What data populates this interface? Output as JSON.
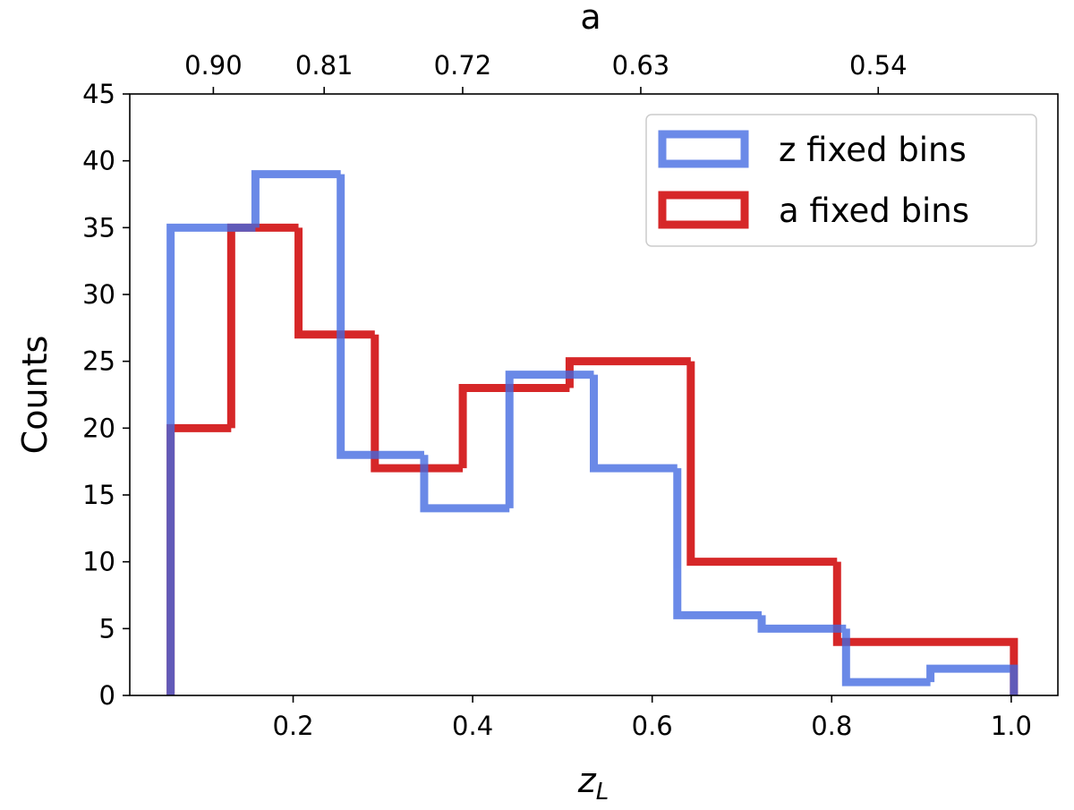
{
  "chart_data": {
    "type": "histogram",
    "xlabel": {
      "base": "z",
      "subscript": "L"
    },
    "ylabel": "Counts",
    "x2label": "a",
    "xlim": [
      0.018,
      1.052
    ],
    "xticks": [
      0.2,
      0.4,
      0.6,
      0.8,
      {
        "value": 1.0,
        "label": "1.0"
      }
    ],
    "ylim": [
      0,
      45
    ],
    "yticks": [
      0,
      5,
      10,
      15,
      20,
      25,
      30,
      35,
      40,
      45
    ],
    "x2ticks": [
      {
        "value": 0.9,
        "label": "0.90"
      },
      0.81,
      0.72,
      0.63,
      0.54
    ],
    "legend": "upper right",
    "grid": false,
    "series": [
      {
        "name": "z fixed bins",
        "color": "#4169e1",
        "bins": [
          0.0635,
          0.158,
          0.253,
          0.346,
          0.441,
          0.535,
          0.628,
          0.722,
          0.816,
          0.91,
          1.003
        ],
        "values": [
          35,
          39,
          18,
          14,
          24,
          17,
          6,
          5,
          1,
          2
        ]
      },
      {
        "name": "a fixed bins",
        "color": "#d62728",
        "bins": [
          0.0635,
          0.131,
          0.206,
          0.291,
          0.389,
          0.508,
          0.643,
          0.806,
          1.003
        ],
        "values": [
          20,
          35,
          27,
          17,
          23,
          25,
          10,
          4
        ]
      }
    ]
  }
}
